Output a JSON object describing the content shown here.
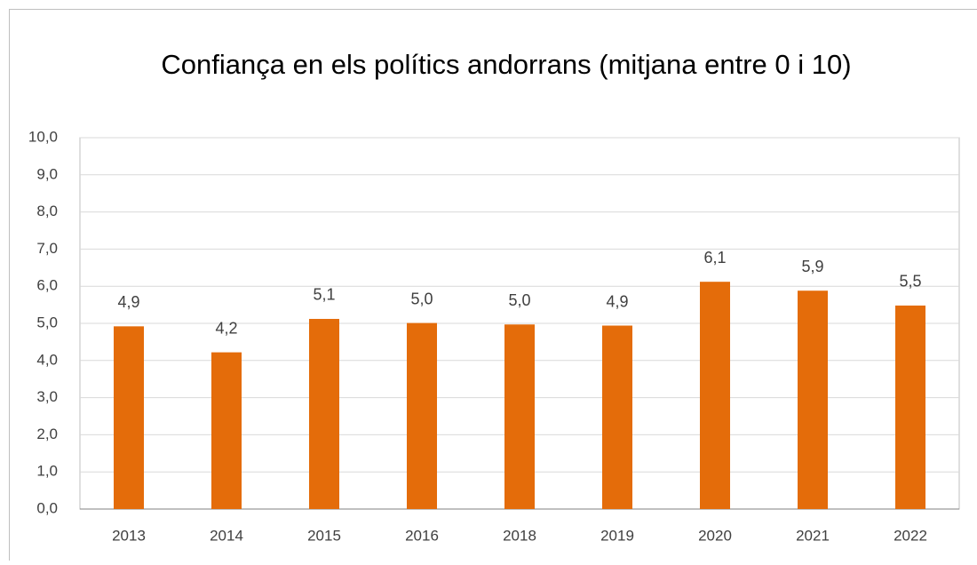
{
  "chart_data": {
    "type": "bar",
    "title": "Confiança en els polítics andorrans (mitjana entre 0 i 10)",
    "categories": [
      "2013",
      "2014",
      "2015",
      "2016",
      "2018",
      "2019",
      "2020",
      "2021",
      "2022"
    ],
    "values": [
      4.92,
      4.22,
      5.12,
      5.01,
      4.97,
      4.94,
      6.12,
      5.88,
      5.48
    ],
    "value_labels": [
      "4,9",
      "4,2",
      "5,1",
      "5,0",
      "5,0",
      "4,9",
      "6,1",
      "5,9",
      "5,5"
    ],
    "color": "#e46c0a",
    "ylim": [
      0,
      10
    ],
    "yticks": [
      {
        "value": 0,
        "label": "0,0"
      },
      {
        "value": 1,
        "label": "1,0"
      },
      {
        "value": 2,
        "label": "2,0"
      },
      {
        "value": 3,
        "label": "3,0"
      },
      {
        "value": 4,
        "label": "4,0"
      },
      {
        "value": 5,
        "label": "5,0"
      },
      {
        "value": 6,
        "label": "6,0"
      },
      {
        "value": 7,
        "label": "7,0"
      },
      {
        "value": 8,
        "label": "8,0"
      },
      {
        "value": 9,
        "label": "9,0"
      },
      {
        "value": 10,
        "label": "10,0"
      }
    ],
    "grid": true
  }
}
